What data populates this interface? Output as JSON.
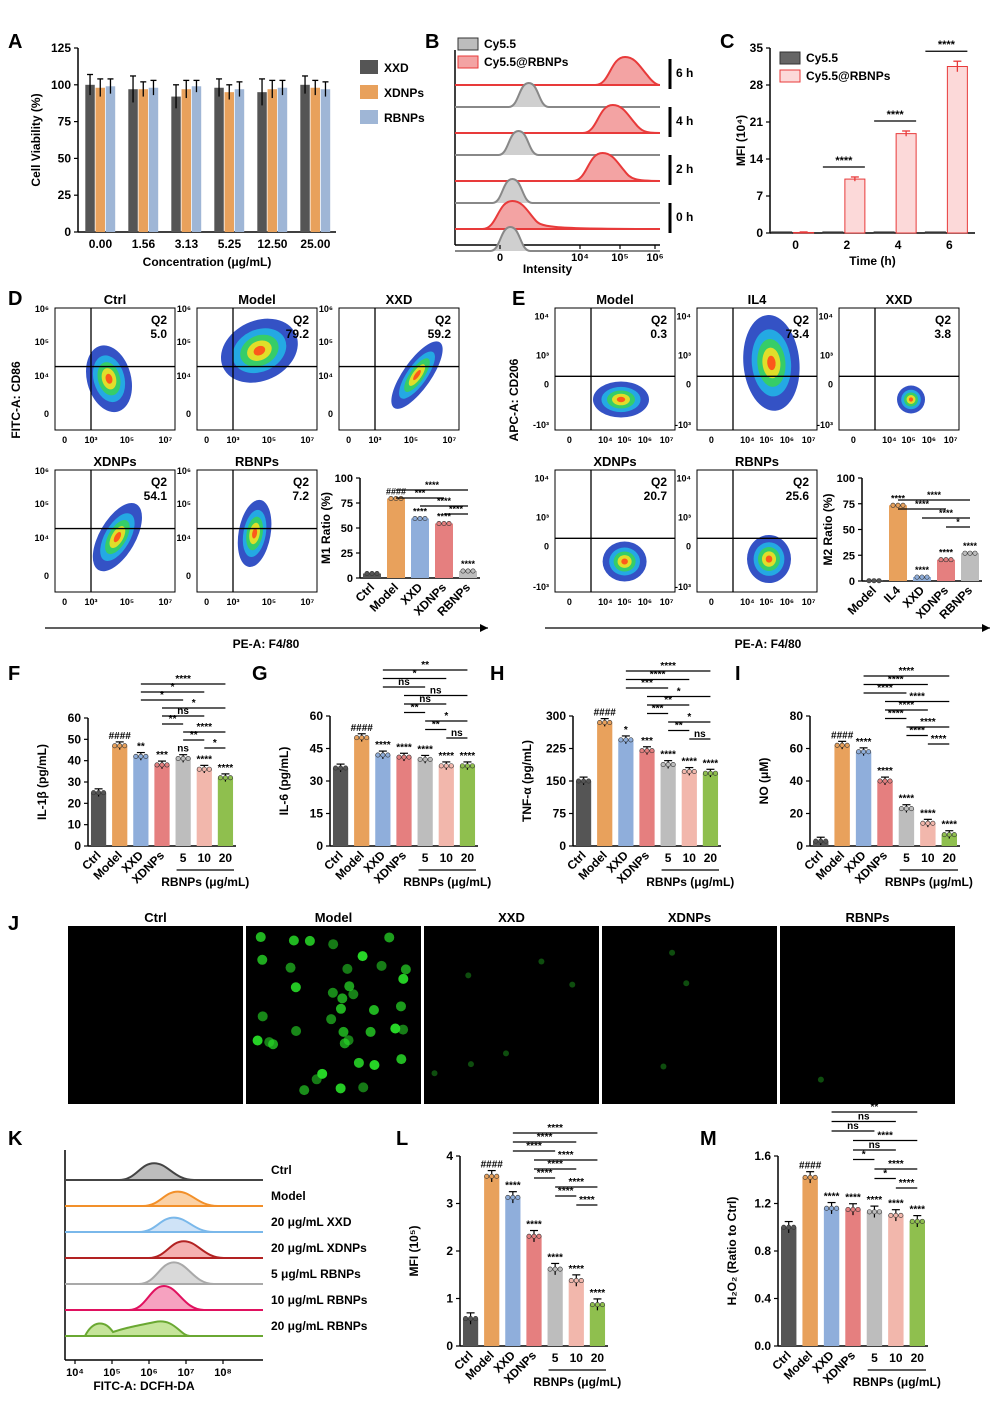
{
  "colors": {
    "ctrl": "#555555",
    "model": "#e8a15c",
    "xxd": "#8faedb",
    "xdnps": "#e57f7f",
    "r5": "#bdbdbd",
    "r10": "#f2b7ac",
    "r20": "#8fbf4e",
    "cy55": "#888888",
    "cyrb": "#e83a3a"
  },
  "chart_data": [
    {
      "panel": "A",
      "type": "bar",
      "categories": [
        "0.00",
        "1.56",
        "3.13",
        "5.25",
        "12.50",
        "25.00"
      ],
      "series": [
        {
          "name": "XXD",
          "values": [
            100,
            97,
            92,
            98,
            95,
            100
          ],
          "err": [
            7,
            9,
            8,
            6,
            9,
            6
          ]
        },
        {
          "name": "XDNPs",
          "values": [
            98,
            97,
            97,
            95,
            97,
            98
          ],
          "err": [
            6,
            5,
            6,
            5,
            6,
            5
          ]
        },
        {
          "name": "RBNPs",
          "values": [
            99,
            98,
            99,
            97,
            98,
            97
          ],
          "err": [
            5,
            5,
            4,
            5,
            5,
            5
          ]
        }
      ],
      "xlabel": "Concentration (μg/mL)",
      "ylabel": "Cell Viability (%)",
      "ylim": [
        0,
        125
      ],
      "yticks": [
        "0",
        "25",
        "50",
        "75",
        "100",
        "125"
      ],
      "legend": "right"
    },
    {
      "panel": "B",
      "type": "area",
      "legend": [
        "Cy5.5",
        "Cy5.5@RBNPs"
      ],
      "rows": [
        "6 h",
        "4 h",
        "2 h",
        "0 h"
      ],
      "xlabel": "Intensity",
      "xticks": [
        "0",
        "10⁴",
        "10⁵",
        "10⁶"
      ]
    },
    {
      "panel": "C",
      "type": "bar",
      "categories": [
        "0",
        "2",
        "4",
        "6"
      ],
      "series": [
        {
          "name": "Cy5.5",
          "values": [
            0.1,
            0.1,
            0.1,
            0.1
          ],
          "err": [
            0.1,
            0.1,
            0.1,
            0.1
          ]
        },
        {
          "name": "Cy5.5@RBNPs",
          "values": [
            0.1,
            10.2,
            18.8,
            31.5
          ],
          "err": [
            0.1,
            0.4,
            0.5,
            1.0
          ]
        }
      ],
      "xlabel": "Time (h)",
      "ylabel": "MFI (10⁴)",
      "ylim": [
        0,
        35
      ],
      "yticks": [
        "0",
        "7",
        "14",
        "21",
        "28",
        "35"
      ],
      "sig": [
        "****",
        "****",
        "****"
      ]
    },
    {
      "panel": "D",
      "type": "scatter",
      "plots": [
        {
          "title": "Ctrl",
          "q2": "Q2",
          "val": "5.0"
        },
        {
          "title": "Model",
          "q2": "Q2",
          "val": "79.2"
        },
        {
          "title": "XXD",
          "q2": "Q2",
          "val": "59.2"
        },
        {
          "title": "XDNPs",
          "q2": "Q2",
          "val": "54.1"
        },
        {
          "title": "RBNPs",
          "q2": "Q2",
          "val": "7.2"
        }
      ],
      "ylabel": "FITC-A: CD86",
      "xlabel": "PE-A: F4/80",
      "bar": {
        "categories": [
          "Ctrl",
          "Model",
          "XXD",
          "XDNPs",
          "RBNPs"
        ],
        "values": [
          4.5,
          79.5,
          59.5,
          54.5,
          7
        ],
        "ylabel": "M1 Ratio (%)",
        "ylim": [
          0,
          100
        ],
        "yticks": [
          "0",
          "25",
          "50",
          "75",
          "100"
        ],
        "labels": [
          "",
          "####",
          "****",
          "****",
          "****"
        ],
        "brackets": [
          "****",
          "***",
          "****",
          "****"
        ]
      }
    },
    {
      "panel": "E",
      "type": "scatter",
      "plots": [
        {
          "title": "Model",
          "q2": "Q2",
          "val": "0.3"
        },
        {
          "title": "IL4",
          "q2": "Q2",
          "val": "73.4"
        },
        {
          "title": "XXD",
          "q2": "Q2",
          "val": "3.8"
        },
        {
          "title": "XDNPs",
          "q2": "Q2",
          "val": "20.7"
        },
        {
          "title": "RBNPs",
          "q2": "Q2",
          "val": "25.6"
        }
      ],
      "ylabel": "APC-A: CD206",
      "xlabel": "PE-A: F4/80",
      "bar": {
        "categories": [
          "Model",
          "IL4",
          "XXD",
          "XDNPs",
          "RBNPs"
        ],
        "values": [
          0.3,
          73.5,
          3.8,
          20.7,
          27
        ],
        "ylabel": "M2 Ratio (%)",
        "ylim": [
          0,
          100
        ],
        "yticks": [
          "0",
          "25",
          "50",
          "75",
          "100"
        ],
        "labels": [
          "",
          "****",
          "****",
          "****",
          "****"
        ],
        "brackets": [
          "****",
          "****",
          "****",
          "*"
        ]
      }
    },
    {
      "panel": "F",
      "type": "bar",
      "categories": [
        "Ctrl",
        "Model",
        "XXD",
        "XDNPs",
        "5",
        "10",
        "20"
      ],
      "values": [
        25,
        47,
        42,
        38,
        41,
        36,
        32
      ],
      "ylabel": "IL-1β (pg/mL)",
      "ylim": [
        0,
        60
      ],
      "yticks": [
        "0",
        "10",
        "20",
        "30",
        "40",
        "50",
        "60"
      ],
      "labels": [
        "",
        "####",
        "**",
        "***",
        "ns",
        "****",
        "****"
      ],
      "brackets": [
        "****",
        "*",
        "*",
        "*",
        "ns",
        "**",
        "****",
        "**",
        "*"
      ],
      "group": "RBNPs (μg/mL)"
    },
    {
      "panel": "G",
      "type": "bar",
      "categories": [
        "Ctrl",
        "Model",
        "XXD",
        "XDNPs",
        "5",
        "10",
        "20"
      ],
      "values": [
        36,
        50,
        42,
        41,
        40,
        37,
        37
      ],
      "ylabel": "IL-6 (pg/mL)",
      "ylim": [
        0,
        60
      ],
      "yticks": [
        "0",
        "15",
        "30",
        "45",
        "60"
      ],
      "labels": [
        "",
        "####",
        "****",
        "****",
        "****",
        "****",
        "****"
      ],
      "brackets": [
        "**",
        "*",
        "ns",
        "ns",
        "ns",
        "**",
        "*",
        "**",
        "ns"
      ],
      "group": "RBNPs (μg/mL)"
    },
    {
      "panel": "H",
      "type": "bar",
      "categories": [
        "Ctrl",
        "Model",
        "XXD",
        "XDNPs",
        "5",
        "10",
        "20"
      ],
      "values": [
        150,
        285,
        245,
        220,
        188,
        172,
        168
      ],
      "ylabel": "TNF-α (pg/mL)",
      "ylim": [
        0,
        300
      ],
      "yticks": [
        "0",
        "75",
        "150",
        "225",
        "300"
      ],
      "labels": [
        "",
        "####",
        "*",
        "***",
        "****",
        "****",
        "****"
      ],
      "brackets": [
        "****",
        "****",
        "***",
        "*",
        "**",
        "***",
        "*",
        "**",
        "ns"
      ],
      "group": "RBNPs (μg/mL)"
    },
    {
      "panel": "I",
      "type": "bar",
      "categories": [
        "Ctrl",
        "Model",
        "XXD",
        "XDNPs",
        "5",
        "10",
        "20"
      ],
      "values": [
        3,
        62,
        58,
        40,
        23,
        14,
        7
      ],
      "ylabel": "NO (μM)",
      "ylim": [
        0,
        80
      ],
      "yticks": [
        "0",
        "20",
        "40",
        "60",
        "80"
      ],
      "labels": [
        "",
        "####",
        "****",
        "****",
        "****",
        "****",
        "****"
      ],
      "brackets": [
        "****",
        "****",
        "****",
        "****",
        "****",
        "****",
        "****",
        "****",
        "****"
      ],
      "group": "RBNPs (μg/mL)"
    },
    {
      "panel": "J",
      "type": "table",
      "images": [
        "Ctrl",
        "Model",
        "XXD",
        "XDNPs",
        "RBNPs"
      ]
    },
    {
      "panel": "K",
      "type": "area",
      "rows": [
        "Ctrl",
        "Model",
        "20 μg/mL XXD",
        "20 μg/mL XDNPs",
        "5 μg/mL RBNPs",
        "10 μg/mL RBNPs",
        "20 μg/mL RBNPs"
      ],
      "xlabel": "FITC-A: DCFH-DA",
      "xticks": [
        "10⁴",
        "10⁵",
        "10⁶",
        "10⁷",
        "10⁸"
      ]
    },
    {
      "panel": "L",
      "type": "bar",
      "categories": [
        "Ctrl",
        "Model",
        "XXD",
        "XDNPs",
        "5",
        "10",
        "20"
      ],
      "values": [
        0.65,
        4.02,
        3.52,
        2.6,
        1.82,
        1.55,
        0.98
      ],
      "ylabel": "MFI (10⁵)",
      "ylim": [
        0,
        4.5
      ],
      "yticks": [
        "0",
        "1",
        "2",
        "3",
        "4"
      ],
      "labels": [
        "",
        "####",
        "****",
        "****",
        "****",
        "****",
        "****"
      ],
      "brackets": [
        "****",
        "****",
        "****",
        "****",
        "****",
        "****",
        "****",
        "****",
        "****"
      ],
      "group": "RBNPs (μg/mL)"
    },
    {
      "panel": "M",
      "type": "bar",
      "categories": [
        "Ctrl",
        "Model",
        "XXD",
        "XDNPs",
        "5",
        "10",
        "20"
      ],
      "values": [
        1.0,
        1.42,
        1.16,
        1.15,
        1.13,
        1.1,
        1.05
      ],
      "ylabel": "H₂O₂ (Ratio to Ctrl)",
      "ylim": [
        0,
        1.6
      ],
      "yticks": [
        "0.0",
        "0.4",
        "0.8",
        "1.2",
        "1.6"
      ],
      "labels": [
        "",
        "####",
        "****",
        "****",
        "****",
        "****",
        "****"
      ],
      "brackets": [
        "**",
        "ns",
        "ns",
        "****",
        "ns",
        "*",
        "****",
        "*",
        "****"
      ],
      "group": "RBNPs (μg/mL)"
    }
  ]
}
